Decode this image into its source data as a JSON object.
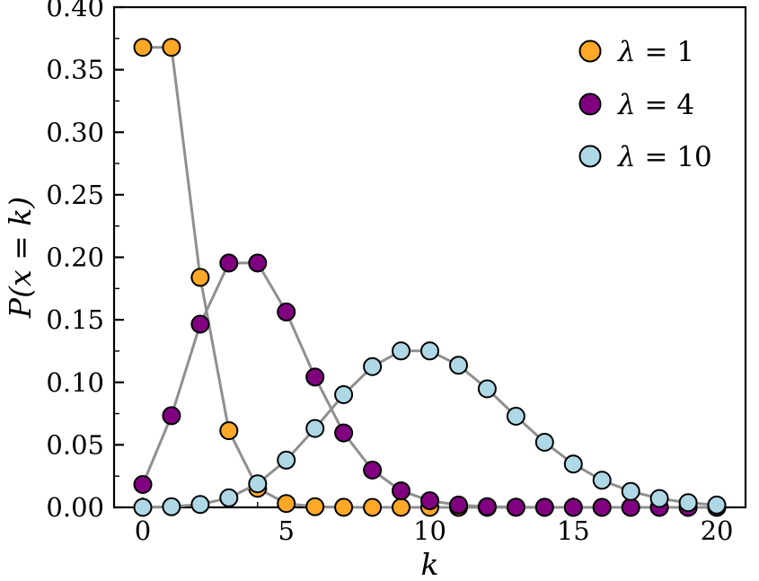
{
  "figure": {
    "background": "#ffffff"
  },
  "chart_data": {
    "type": "line",
    "title": "",
    "xlabel": "k",
    "ylabel": "P(x = k)",
    "xlim": [
      -1,
      21
    ],
    "ylim": [
      0,
      0.4
    ],
    "grid": false,
    "legend_position": "top-right",
    "line_color": "#8f8f8f",
    "marker_edge_color": "#000000",
    "x": [
      0,
      1,
      2,
      3,
      4,
      5,
      6,
      7,
      8,
      9,
      10,
      11,
      12,
      13,
      14,
      15,
      16,
      17,
      18,
      19,
      20
    ],
    "x_tick_values": [
      0,
      5,
      10,
      15,
      20
    ],
    "x_tick_labels": [
      "0",
      "5",
      "10",
      "15",
      "20"
    ],
    "y_tick_values": [
      0.0,
      0.05,
      0.1,
      0.15,
      0.2,
      0.25,
      0.3,
      0.35,
      0.4
    ],
    "y_tick_labels": [
      "0.00",
      "0.05",
      "0.10",
      "0.15",
      "0.20",
      "0.25",
      "0.30",
      "0.35",
      "0.40"
    ],
    "series": [
      {
        "name": "λ = 1",
        "color": "#ffa726",
        "values": [
          0.3679,
          0.3679,
          0.1839,
          0.0613,
          0.0153,
          0.0031,
          0.0005,
          0.0001,
          0.0,
          0.0,
          0.0,
          0.0,
          0.0,
          0.0,
          0.0,
          0.0,
          0.0,
          0.0,
          0.0,
          0.0,
          0.0
        ]
      },
      {
        "name": "λ = 4",
        "color": "#800080",
        "values": [
          0.0183,
          0.0733,
          0.1465,
          0.1954,
          0.1954,
          0.1563,
          0.1042,
          0.0595,
          0.0298,
          0.0132,
          0.0053,
          0.0019,
          0.0006,
          0.0002,
          0.0001,
          0.0,
          0.0,
          0.0,
          0.0,
          0.0,
          0.0
        ]
      },
      {
        "name": "λ = 10",
        "color": "#aed8e6",
        "values": [
          0.0,
          0.0005,
          0.0023,
          0.0076,
          0.0189,
          0.0378,
          0.0631,
          0.0901,
          0.1126,
          0.1251,
          0.1251,
          0.1137,
          0.0948,
          0.0729,
          0.0521,
          0.0347,
          0.0217,
          0.0128,
          0.0071,
          0.0037,
          0.0019
        ]
      }
    ]
  }
}
